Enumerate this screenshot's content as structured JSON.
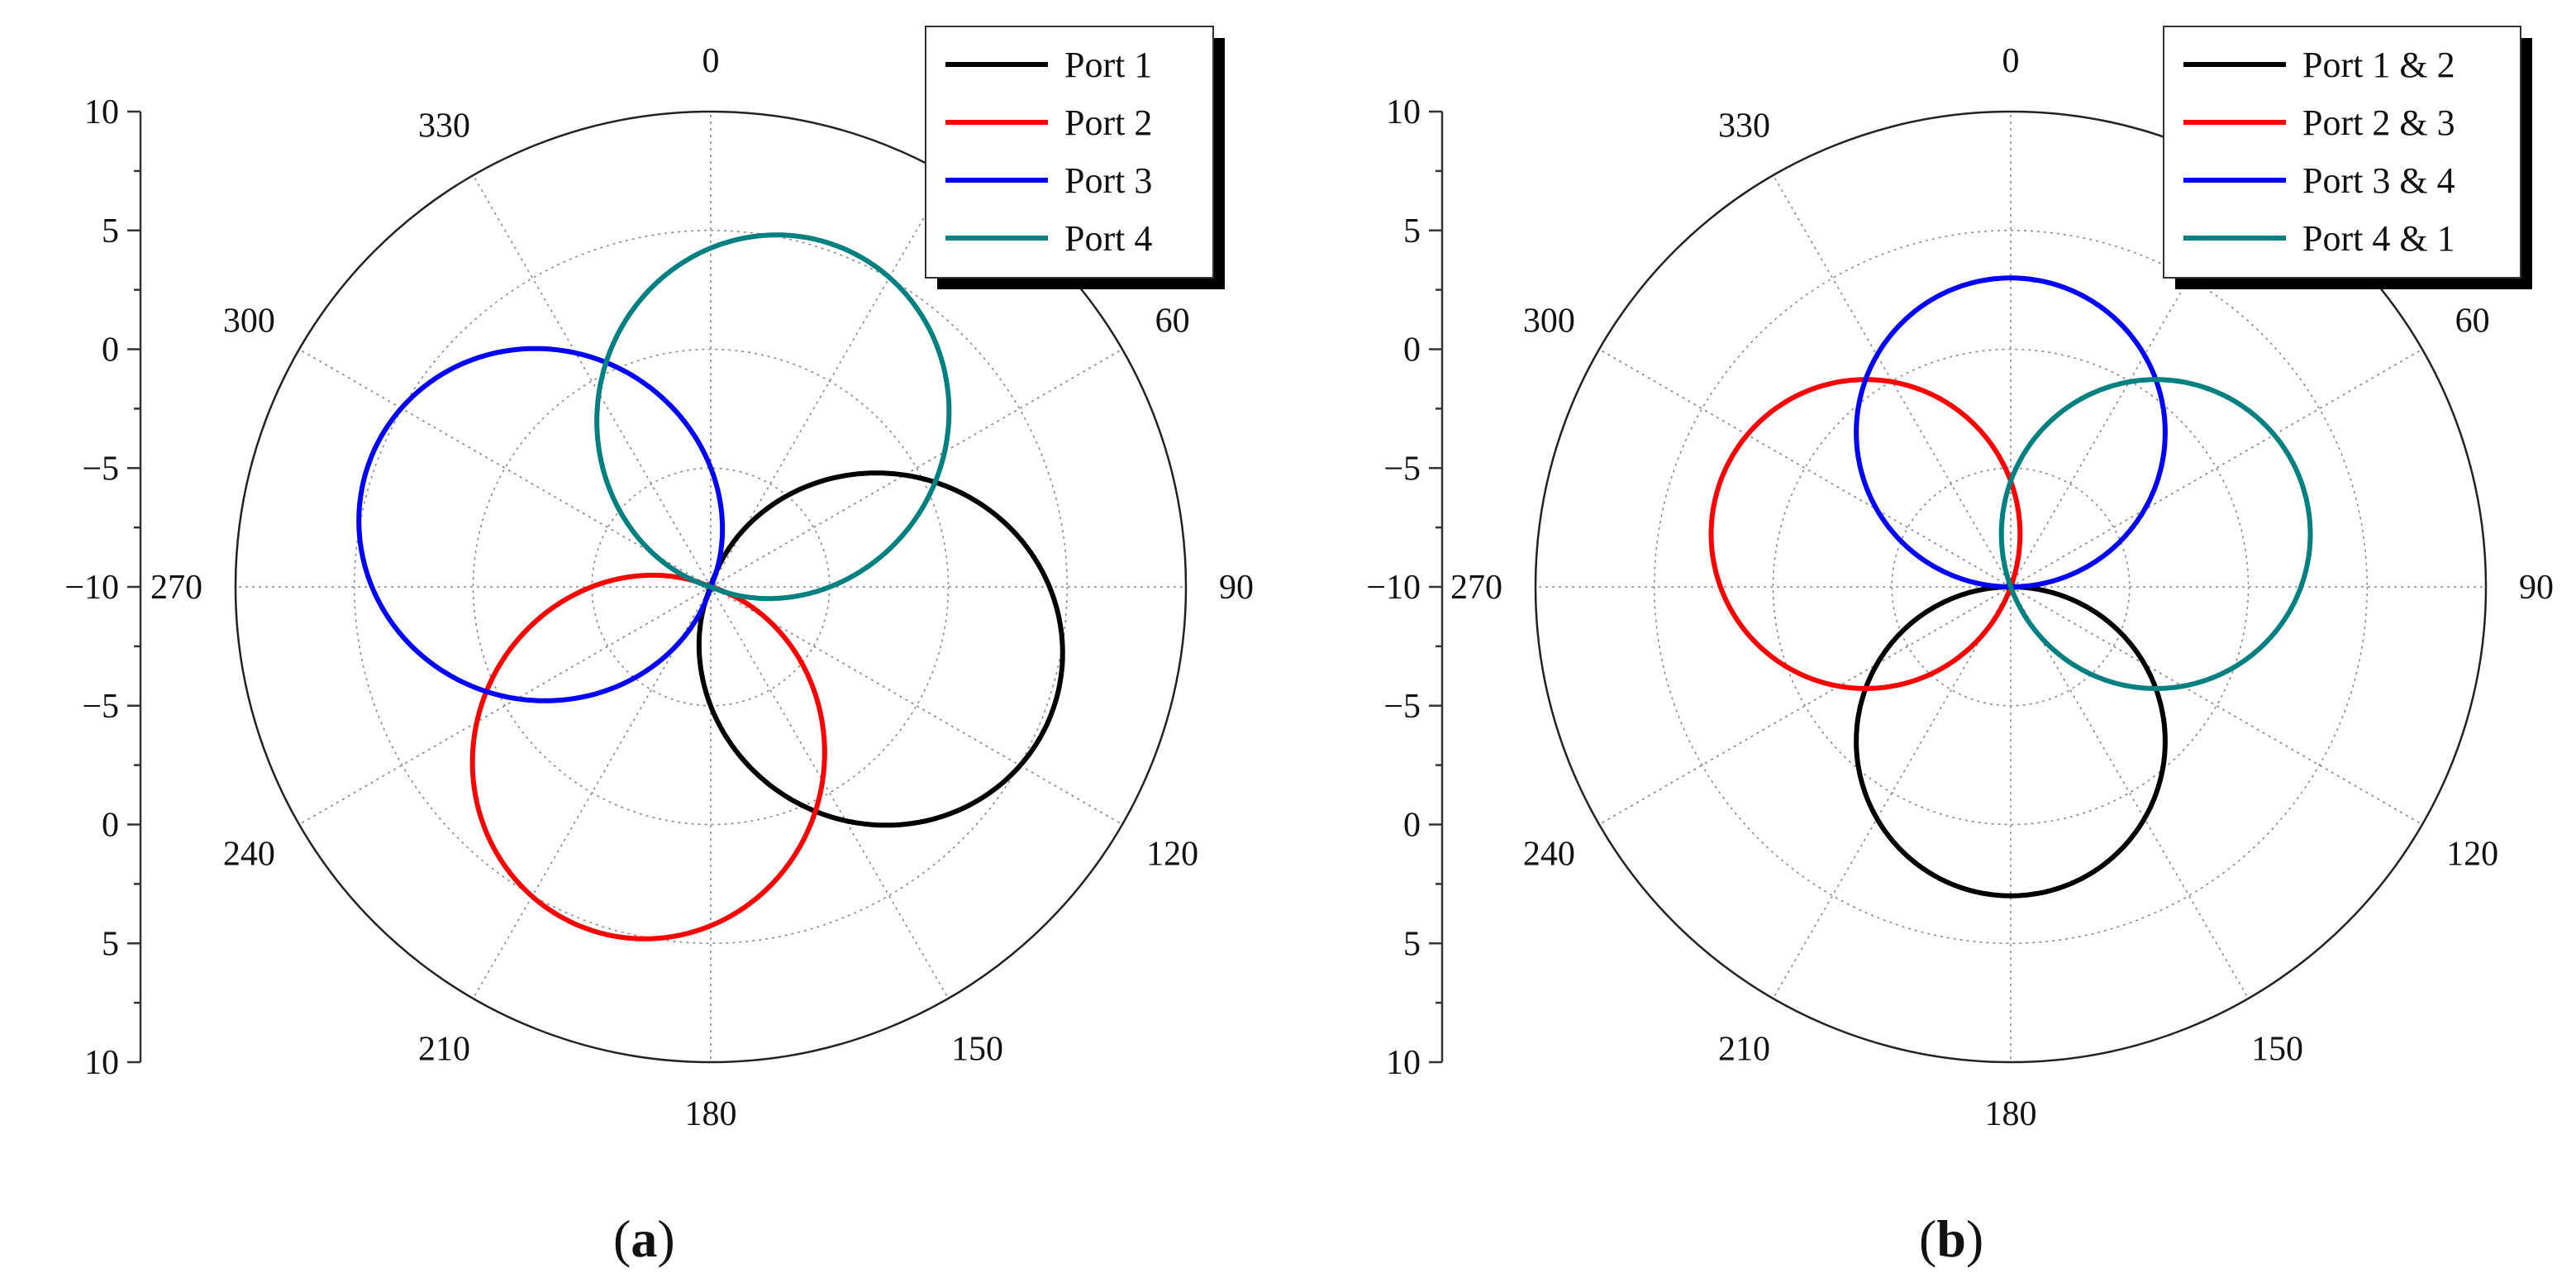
{
  "chart_data": [
    {
      "id": "a",
      "type": "polar-line",
      "caption_open": "(",
      "caption_letter": "a",
      "caption_close": ")",
      "angular_ticks": [
        {
          "deg": 0,
          "label": "0"
        },
        {
          "deg": 60,
          "label": "60"
        },
        {
          "deg": 90,
          "label": "90"
        },
        {
          "deg": 120,
          "label": "120"
        },
        {
          "deg": 150,
          "label": "150"
        },
        {
          "deg": 180,
          "label": "180"
        },
        {
          "deg": 210,
          "label": "210"
        },
        {
          "deg": 240,
          "label": "240"
        },
        {
          "deg": 270,
          "label": "270"
        },
        {
          "deg": 300,
          "label": "300"
        },
        {
          "deg": 330,
          "label": "330"
        }
      ],
      "radial_axis": {
        "labels": [
          "10",
          "5",
          "0",
          "−5",
          "−10",
          "−5",
          "0",
          "5",
          "10"
        ],
        "values": [
          10,
          5,
          0,
          -5,
          -10,
          -5,
          0,
          5,
          10
        ],
        "rmin": -10,
        "rmax": 10
      },
      "series": [
        {
          "name": "Port 1",
          "color": "#000000",
          "peak": 5.3,
          "minimum": -16.5,
          "beam_deg": 110,
          "shape": 1.6
        },
        {
          "name": "Port 2",
          "color": "#ff0000",
          "peak": 5.3,
          "minimum": -16.5,
          "beam_deg": 200,
          "shape": 1.6
        },
        {
          "name": "Port 3",
          "color": "#0000ff",
          "peak": 5.3,
          "minimum": -16.5,
          "beam_deg": 290,
          "shape": 1.6
        },
        {
          "name": "Port 4",
          "color": "#008080",
          "peak": 5.3,
          "minimum": -16.5,
          "beam_deg": 20,
          "shape": 1.6
        }
      ]
    },
    {
      "id": "b",
      "type": "polar-line",
      "caption_open": "(",
      "caption_letter": "b",
      "caption_close": ")",
      "angular_ticks": [
        {
          "deg": 0,
          "label": "0"
        },
        {
          "deg": 60,
          "label": "60"
        },
        {
          "deg": 90,
          "label": "90"
        },
        {
          "deg": 120,
          "label": "120"
        },
        {
          "deg": 150,
          "label": "150"
        },
        {
          "deg": 180,
          "label": "180"
        },
        {
          "deg": 210,
          "label": "210"
        },
        {
          "deg": 240,
          "label": "240"
        },
        {
          "deg": 270,
          "label": "270"
        },
        {
          "deg": 300,
          "label": "300"
        },
        {
          "deg": 330,
          "label": "330"
        }
      ],
      "radial_axis": {
        "labels": [
          "10",
          "5",
          "0",
          "−5",
          "−10",
          "−5",
          "0",
          "5",
          "10"
        ],
        "values": [
          10,
          5,
          0,
          -5,
          -10,
          -5,
          0,
          5,
          10
        ],
        "rmin": -10,
        "rmax": 10
      },
      "series": [
        {
          "name": "Port 1 & 2",
          "color": "#000000",
          "peak": 3.0,
          "beam_deg": 180
        },
        {
          "name": "Port 2 & 3",
          "color": "#ff0000",
          "peak": 3.0,
          "beam_deg": 290
        },
        {
          "name": "Port 3 & 4",
          "color": "#0000ff",
          "peak": 3.0,
          "beam_deg": 0
        },
        {
          "name": "Port 4 & 1",
          "color": "#008080",
          "peak": 3.0,
          "beam_deg": 70
        }
      ]
    }
  ]
}
